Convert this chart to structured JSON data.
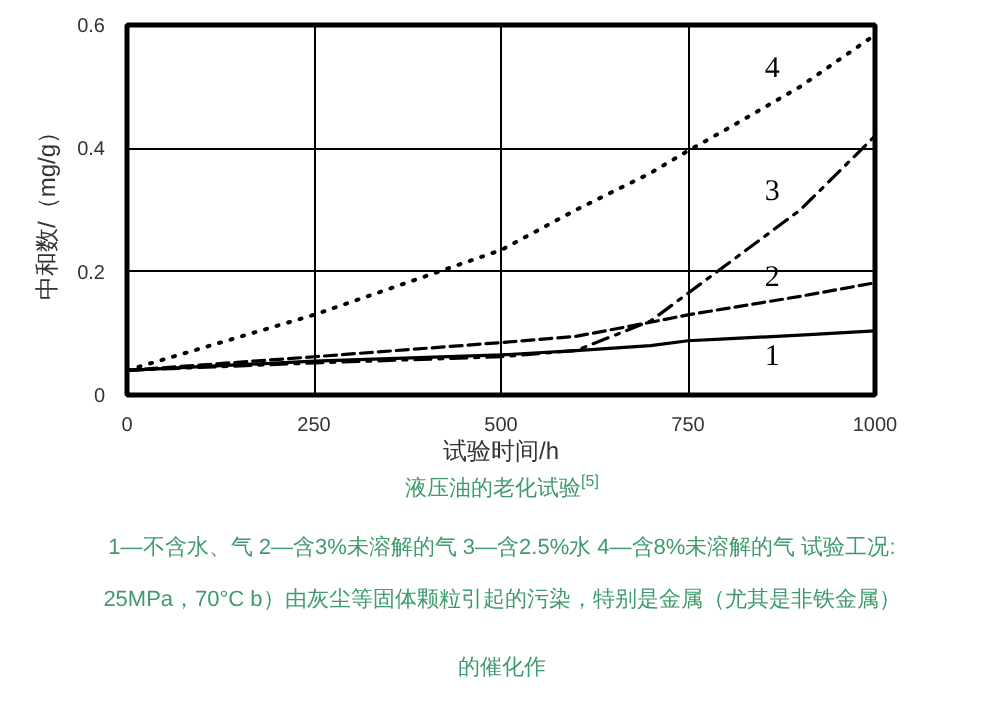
{
  "chart_data": {
    "type": "line",
    "xlabel": "试验时间/h",
    "ylabel": "中和数/（mg/g）",
    "x": [
      0,
      250,
      500,
      600,
      700,
      750,
      800,
      900,
      1000
    ],
    "series": [
      {
        "name": "1",
        "color": "#000000",
        "line_style": "solid",
        "values": [
          0.04,
          0.055,
          0.065,
          0.072,
          0.08,
          0.088,
          0.091,
          0.097,
          0.104
        ]
      },
      {
        "name": "2",
        "color": "#000000",
        "line_style": "dashed",
        "values": [
          0.04,
          0.062,
          0.085,
          0.095,
          0.118,
          0.13,
          0.14,
          0.16,
          0.182
        ]
      },
      {
        "name": "3",
        "color": "#000000",
        "line_style": "dashdot",
        "values": [
          0.04,
          0.052,
          0.062,
          0.072,
          0.12,
          0.165,
          0.21,
          0.3,
          0.42
        ]
      },
      {
        "name": "4",
        "color": "#000000",
        "line_style": "dotted",
        "values": [
          0.04,
          0.13,
          0.235,
          0.3,
          0.36,
          0.396,
          0.43,
          0.5,
          0.584
        ]
      }
    ],
    "xlim": [
      0,
      1000
    ],
    "ylim": [
      0,
      0.6
    ],
    "xticks": [
      0,
      250,
      500,
      750,
      1000
    ],
    "yticks": [
      0,
      0.2,
      0.4,
      0.6
    ],
    "grid": true,
    "marker": "none",
    "annotations": [
      "液压油的老化试验$^{[5]}$",
      "1—不含水、气  2—含3%未溶解的气  3—含2.5%水  4—含8%未溶解的气 试验工况:",
      "25MPa，70°C b）由灰尘等固体颗粒引起的污染，特别是金属（尤其是非铁金属）",
      "的催化作"
    ]
  }
}
